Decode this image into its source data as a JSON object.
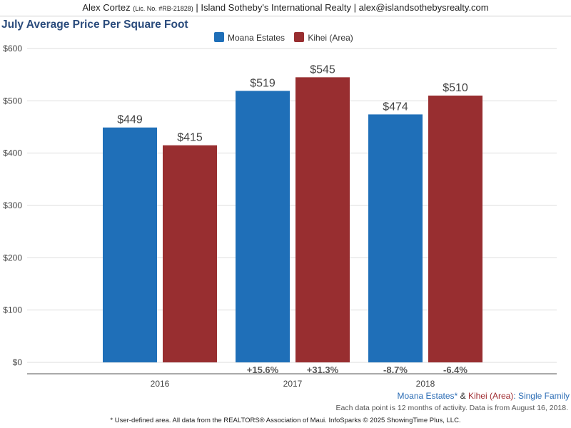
{
  "header": {
    "name": "Alex Cortez",
    "license": "(Lic. No. #RB-21828)",
    "company": "| Island Sotheby's International Realty | alex@islandsothebysrealty.com"
  },
  "colors": {
    "series_1": "#1f6fb8",
    "series_2": "#982e30",
    "title": "#2a4b7c"
  },
  "chart_data": {
    "type": "bar",
    "title": "July Average Price Per Square Foot",
    "categories": [
      "2016",
      "2017",
      "2018"
    ],
    "series": [
      {
        "name": "Moana Estates",
        "values": [
          449,
          519,
          474
        ],
        "labels": [
          "$449",
          "$519",
          "$474"
        ],
        "changes": [
          "",
          "+15.6%",
          "-8.7%"
        ]
      },
      {
        "name": "Kihei (Area)",
        "values": [
          415,
          545,
          510
        ],
        "labels": [
          "$415",
          "$545",
          "$510"
        ],
        "changes": [
          "",
          "+31.3%",
          "-6.4%"
        ]
      }
    ],
    "ylim": [
      0,
      600
    ],
    "yticks": [
      0,
      100,
      200,
      300,
      400,
      500,
      600
    ],
    "ytick_labels": [
      "$0",
      "$100",
      "$200",
      "$300",
      "$400",
      "$500",
      "$600"
    ],
    "grid": true,
    "legend_position": "top-center"
  },
  "footer": {
    "subtitle_series1": "Moana Estates*",
    "subtitle_amp": "&",
    "subtitle_series2": "Kihei (Area)",
    "subtitle_type": ": Single Family",
    "note": "Each data point is 12 months of activity. Data is from August 16, 2018.",
    "disclaimer": "* User-defined area. All data from the REALTORS® Association of Maui. InfoSparks © 2025 ShowingTime Plus, LLC."
  }
}
